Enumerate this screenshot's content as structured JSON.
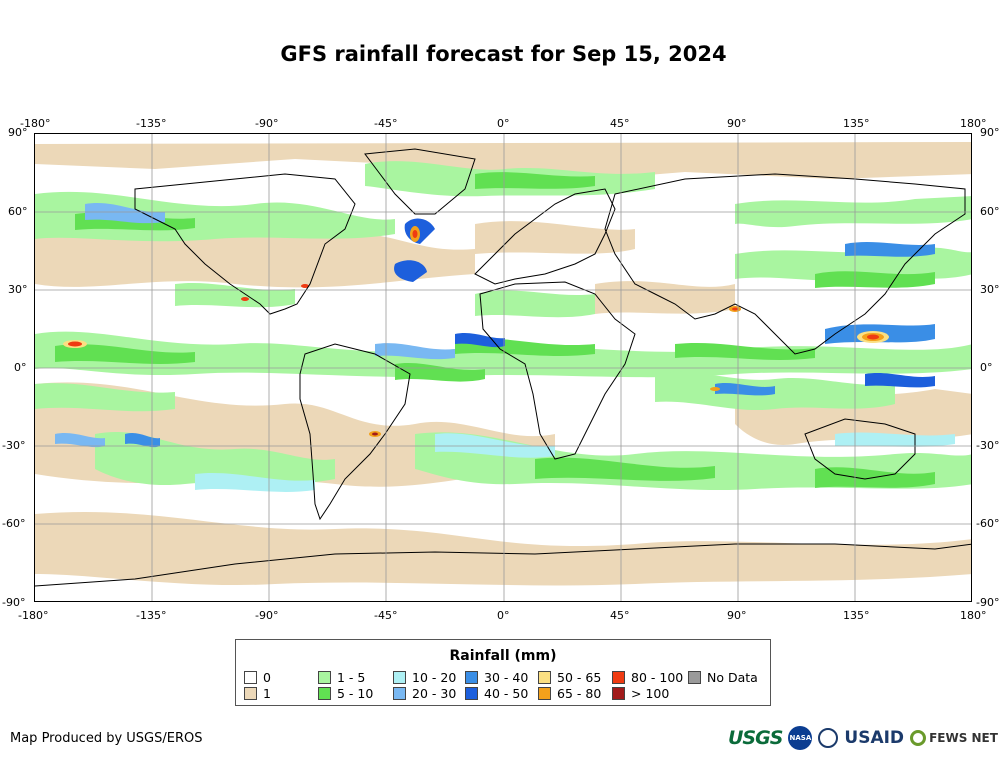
{
  "title": "GFS rainfall forecast for Sep 15, 2024",
  "axes": {
    "lon_ticks": [
      "-180°",
      "-135°",
      "-90°",
      "-45°",
      "0°",
      "45°",
      "90°",
      "135°",
      "180°"
    ],
    "lat_ticks": [
      "90°",
      "60°",
      "30°",
      "0°",
      "-30°",
      "-60°",
      "-90°"
    ]
  },
  "legend": {
    "title": "Rainfall (mm)",
    "items": [
      {
        "label": "0",
        "color": "#ffffff"
      },
      {
        "label": "1",
        "color": "#ecd8b8"
      },
      {
        "label": "1 - 5",
        "color": "#a9f5a0"
      },
      {
        "label": "5 - 10",
        "color": "#61e052"
      },
      {
        "label": "10 - 20",
        "color": "#aef0f4"
      },
      {
        "label": "20 - 30",
        "color": "#79b8f2"
      },
      {
        "label": "30 - 40",
        "color": "#3a8ee6"
      },
      {
        "label": "40 - 50",
        "color": "#1d5fdc"
      },
      {
        "label": "50 - 65",
        "color": "#fbdf82"
      },
      {
        "label": "65 - 80",
        "color": "#f3a11b"
      },
      {
        "label": "80 - 100",
        "color": "#ef3b12"
      },
      {
        "label": "> 100",
        "color": "#a11b1b"
      },
      {
        "label": "No Data",
        "color": "#9a9a9a"
      }
    ]
  },
  "credit": "Map Produced by USGS/EROS",
  "logos": {
    "usgs": "USGS",
    "nasa": "NASA",
    "usaid": "USAID",
    "fews": "FEWS NET"
  }
}
